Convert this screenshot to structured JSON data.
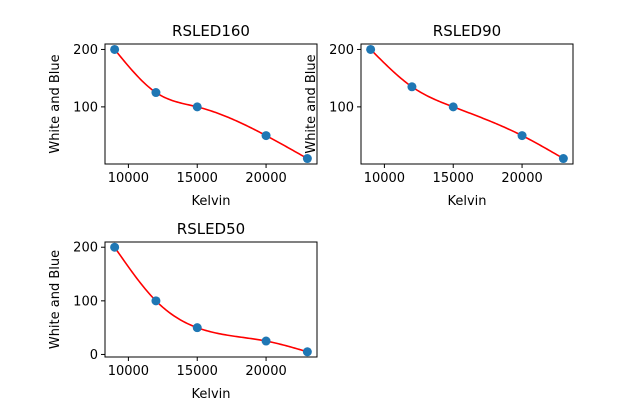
{
  "chart_data": [
    {
      "type": "scatter",
      "title": "RSLED160",
      "xlabel": "Kelvin",
      "ylabel": "White and Blue",
      "x": [
        9000,
        12000,
        15000,
        20000,
        23000
      ],
      "y": [
        200,
        125,
        100,
        50,
        10
      ],
      "fit_color": "#ff0000",
      "point_color": "#1f77b4",
      "xlim": [
        8300,
        23700
      ],
      "ylim": [
        0.5,
        209.5
      ],
      "xticks": [
        10000,
        15000,
        20000
      ],
      "yticks": [
        100,
        200
      ],
      "xtick_labels": [
        "10000",
        "15000",
        "20000"
      ],
      "ytick_labels": [
        "100",
        "200"
      ]
    },
    {
      "type": "scatter",
      "title": "RSLED90",
      "xlabel": "Kelvin",
      "ylabel": "White and Blue",
      "x": [
        9000,
        12000,
        15000,
        20000,
        23000
      ],
      "y": [
        200,
        135,
        100,
        50,
        10
      ],
      "fit_color": "#ff0000",
      "point_color": "#1f77b4",
      "xlim": [
        8300,
        23700
      ],
      "ylim": [
        0.5,
        209.5
      ],
      "xticks": [
        10000,
        15000,
        20000
      ],
      "yticks": [
        100,
        200
      ],
      "xtick_labels": [
        "10000",
        "15000",
        "20000"
      ],
      "ytick_labels": [
        "100",
        "200"
      ]
    },
    {
      "type": "scatter",
      "title": "RSLED50",
      "xlabel": "Kelvin",
      "ylabel": "White and Blue",
      "x": [
        9000,
        12000,
        15000,
        20000,
        23000
      ],
      "y": [
        200,
        100,
        50,
        25,
        5
      ],
      "fit_color": "#ff0000",
      "point_color": "#1f77b4",
      "xlim": [
        8300,
        23700
      ],
      "ylim": [
        -4.75,
        209.75
      ],
      "xticks": [
        10000,
        15000,
        20000
      ],
      "yticks": [
        0,
        100,
        200
      ],
      "xtick_labels": [
        "10000",
        "15000",
        "20000"
      ],
      "ytick_labels": [
        "0",
        "100",
        "200"
      ]
    }
  ]
}
